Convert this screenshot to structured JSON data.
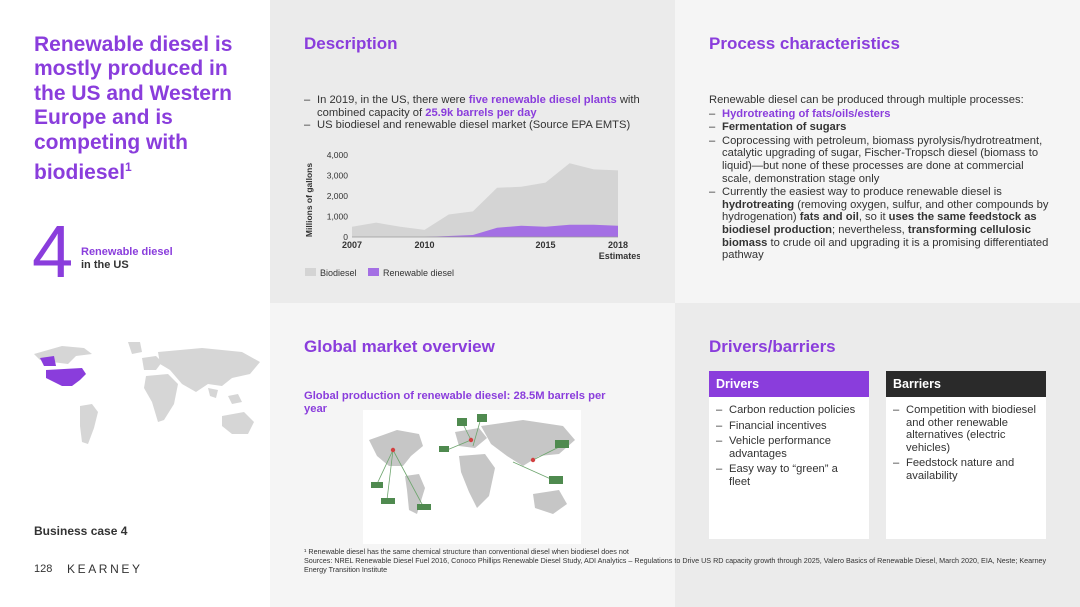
{
  "colors": {
    "accent": "#8a3ddc",
    "biodiesel_area": "#d4d4d4",
    "renewable_area": "#a46fe4",
    "barriers_header": "#2a2a2a"
  },
  "left": {
    "headline": "Renewable diesel is mostly produced in the US and Western Europe and is competing with biodiesel",
    "headline_sup": "1",
    "big_number": "4",
    "number_label1": "Renewable diesel",
    "number_label2": "in the US",
    "business_case": "Business case 4",
    "page_number": "128",
    "logo": "KEARNEY"
  },
  "description": {
    "title": "Description",
    "b1_pre": "In 2019, in the US, there were ",
    "b1_hl": "five renewable diesel plants",
    "b1_mid": " with combined capacity of ",
    "b1_hl2": "25.9k barrels per day",
    "b2": "US biodiesel and renewable diesel market (Source EPA EMTS)"
  },
  "chart_data": {
    "type": "area",
    "ylabel": "Millions of gallons",
    "xlabel": "",
    "ylim": [
      0,
      4000
    ],
    "yticks": [
      "4,000",
      "3,000",
      "2,000",
      "1,000",
      "0"
    ],
    "xtick_labels": [
      "2007",
      "2010",
      "2015",
      "2018"
    ],
    "x_annotation": "Estimates",
    "x": [
      2007,
      2008,
      2009,
      2010,
      2011,
      2012,
      2013,
      2014,
      2015,
      2016,
      2017,
      2018
    ],
    "series": [
      {
        "name": "Biodiesel",
        "values": [
          500,
          700,
          500,
          350,
          1100,
          1250,
          2400,
          2450,
          2650,
          3600,
          3300,
          3250
        ]
      },
      {
        "name": "Renewable diesel",
        "values": [
          0,
          0,
          0,
          0,
          50,
          100,
          450,
          550,
          500,
          600,
          600,
          550
        ]
      }
    ]
  },
  "process": {
    "title": "Process characteristics",
    "intro": "Renewable diesel can be produced through multiple processes:",
    "b1": "Hydrotreating of fats/oils/esters",
    "b2": "Fermentation of sugars",
    "b3": "Coprocessing with petroleum, biomass pyrolysis/hydrotreatment, catalytic upgrading of sugar, Fischer-Tropsch diesel (biomass to liquid)—but none of these processes are done at commercial scale, demonstration stage only",
    "b4_t1": "Currently the easiest way to produce renewable diesel is ",
    "b4_b1": "hydrotreating",
    "b4_t2": " (removing oxygen, sulfur, and other compounds by hydrogenation) ",
    "b4_b2": "fats and oil",
    "b4_t3": ", so it ",
    "b4_b3": "uses the same feedstock as biodiesel production",
    "b4_t4": "; nevertheless, ",
    "b4_b4": "transforming cellulosic biomass",
    "b4_t5": " to crude oil and upgrading it is a promising differentiated pathway"
  },
  "global": {
    "title": "Global market overview",
    "subtitle": "Global production of renewable diesel: 28.5M barrels per year"
  },
  "drivers": {
    "title": "Drivers/barriers",
    "drivers_head": "Drivers",
    "drivers_items": [
      "Carbon reduction policies",
      "Financial incentives",
      "Vehicle performance advantages",
      "Easy way to “green” a fleet"
    ],
    "barriers_head": "Barriers",
    "barriers_items": [
      "Competition with biodiesel and other renewable alternatives (electric vehicles)",
      "Feedstock nature and availability"
    ]
  },
  "footnotes": {
    "f1": "¹ Renewable diesel has the same chemical structure than conventional diesel when biodiesel  does not",
    "sources": "Sources: NREL Renewable Diesel Fuel 2016, Conoco Phillips Renewable Diesel Study, ADI Analytics – Regulations to Drive US RD capacity growth through 2025, Valero Basics of Renewable Diesel, March 2020, EIA, Neste; Kearney Energy Transition Institute"
  }
}
